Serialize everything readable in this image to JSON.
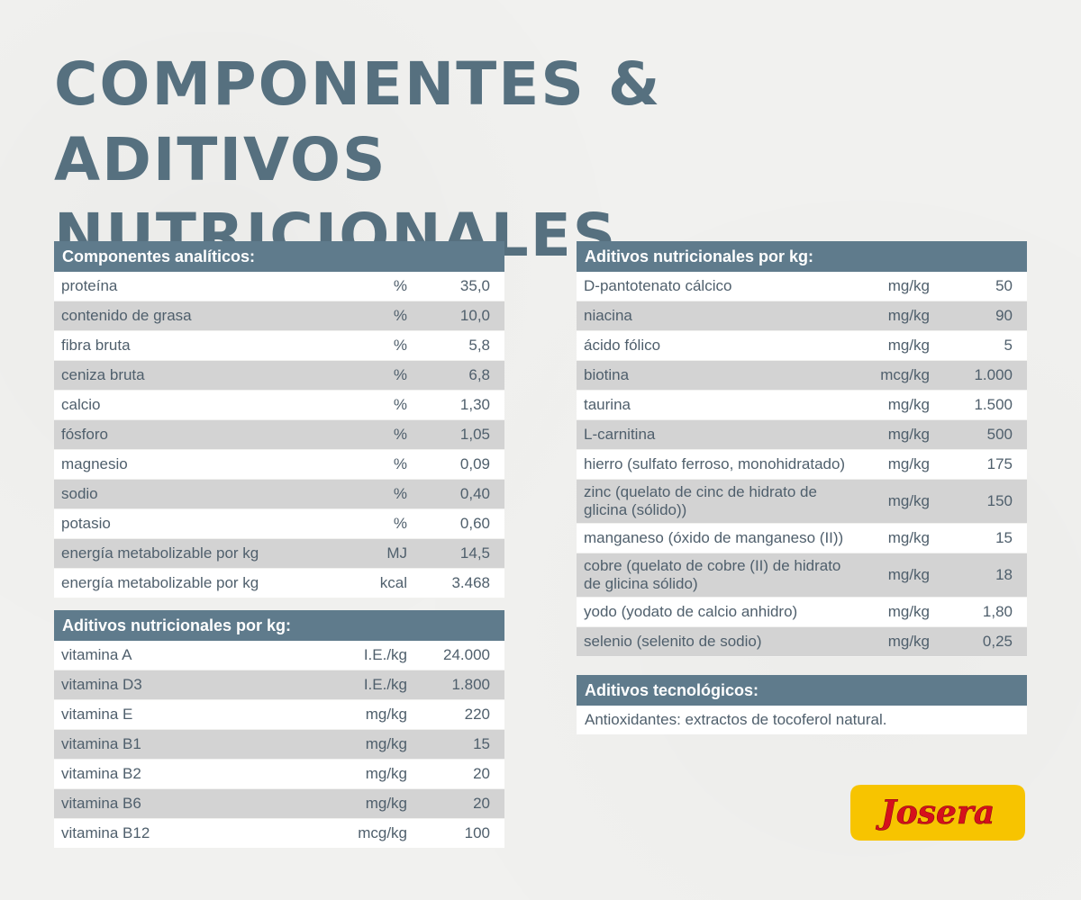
{
  "title": {
    "line1": "COMPONENTES &",
    "line2": "ADITIVOS NUTRICIONALES"
  },
  "analytic": {
    "heading": "Componentes analíticos:",
    "rows": [
      {
        "name": "proteína",
        "unit": "%",
        "value": "35,0"
      },
      {
        "name": "contenido de grasa",
        "unit": "%",
        "value": "10,0"
      },
      {
        "name": "fibra bruta",
        "unit": "%",
        "value": "5,8"
      },
      {
        "name": "ceniza bruta",
        "unit": "%",
        "value": "6,8"
      },
      {
        "name": "calcio",
        "unit": "%",
        "value": "1,30"
      },
      {
        "name": "fósforo",
        "unit": "%",
        "value": "1,05"
      },
      {
        "name": "magnesio",
        "unit": "%",
        "value": "0,09"
      },
      {
        "name": "sodio",
        "unit": "%",
        "value": "0,40"
      },
      {
        "name": "potasio",
        "unit": "%",
        "value": "0,60"
      },
      {
        "name": "energía metabolizable por kg",
        "unit": "MJ",
        "value": "14,5"
      },
      {
        "name": "energía metabolizable por kg",
        "unit": "kcal",
        "value": "3.468"
      }
    ]
  },
  "vitamins": {
    "heading": "Aditivos nutricionales por kg:",
    "rows": [
      {
        "name": "vitamina A",
        "unit": "I.E./kg",
        "value": "24.000"
      },
      {
        "name": "vitamina D3",
        "unit": "I.E./kg",
        "value": "1.800"
      },
      {
        "name": "vitamina E",
        "unit": "mg/kg",
        "value": "220"
      },
      {
        "name": "vitamina B1",
        "unit": "mg/kg",
        "value": "15"
      },
      {
        "name": "vitamina B2",
        "unit": "mg/kg",
        "value": "20"
      },
      {
        "name": "vitamina B6",
        "unit": "mg/kg",
        "value": "20"
      },
      {
        "name": "vitamina B12",
        "unit": "mcg/kg",
        "value": "100"
      }
    ]
  },
  "additives": {
    "heading": "Aditivos nutricionales por kg:",
    "rows": [
      {
        "name": "D-pantotenato cálcico",
        "unit": "mg/kg",
        "value": "50"
      },
      {
        "name": "niacina",
        "unit": "mg/kg",
        "value": "90"
      },
      {
        "name": "ácido fólico",
        "unit": "mg/kg",
        "value": "5"
      },
      {
        "name": "biotina",
        "unit": "mcg/kg",
        "value": "1.000"
      },
      {
        "name": "taurina",
        "unit": "mg/kg",
        "value": "1.500"
      },
      {
        "name": "L-carnitina",
        "unit": "mg/kg",
        "value": "500"
      },
      {
        "name": "hierro (sulfato ferroso, monohidratado)",
        "unit": "mg/kg",
        "value": "175"
      },
      {
        "name": "zinc (quelato de cinc de hidrato de glicina (sólido))",
        "unit": "mg/kg",
        "value": "150"
      },
      {
        "name": "manganeso (óxido de manganeso (II))",
        "unit": "mg/kg",
        "value": "15"
      },
      {
        "name": "cobre (quelato de cobre (II) de hidrato de glicina sólido)",
        "unit": "mg/kg",
        "value": "18"
      },
      {
        "name": "yodo (yodato de calcio anhidro)",
        "unit": "mg/kg",
        "value": "1,80"
      },
      {
        "name": "selenio (selenito de sodio)",
        "unit": "mg/kg",
        "value": "0,25"
      }
    ]
  },
  "technological": {
    "heading": "Aditivos tecnológicos:",
    "text": "Antioxidantes: extractos de tocoferol natural."
  },
  "logo": {
    "text": "Josera",
    "colors": {
      "background": "#f7c400",
      "text": "#d6101c"
    }
  }
}
